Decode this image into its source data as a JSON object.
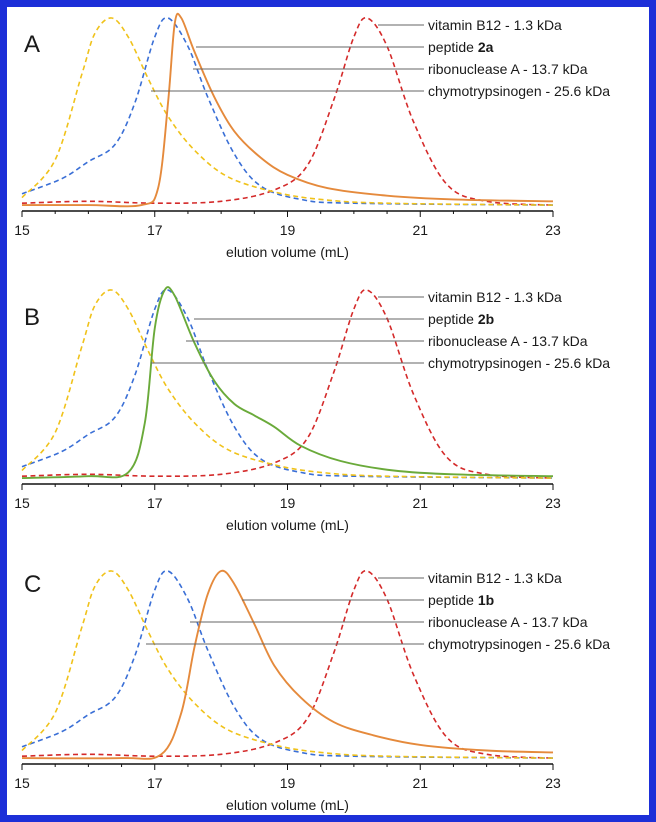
{
  "chart_data": [
    {
      "type": "line",
      "panel": "A",
      "xlabel": "elution volume (mL)",
      "ylabel": "",
      "xlim": [
        15,
        23
      ],
      "xticks": [
        15,
        17,
        19,
        21,
        23
      ],
      "grid": false,
      "series": [
        {
          "name": "vitamin B12  - 1.3 kDa",
          "color": "#d42a2a",
          "dashed": true,
          "x": [
            15,
            16,
            17,
            18,
            18.8,
            19.3,
            19.7,
            20.0,
            20.2,
            20.5,
            20.9,
            21.4,
            22.0,
            23
          ],
          "y": [
            0.02,
            0.03,
            0.02,
            0.03,
            0.09,
            0.22,
            0.57,
            0.9,
            1.0,
            0.85,
            0.45,
            0.12,
            0.03,
            0.01
          ]
        },
        {
          "name": "peptide 2a",
          "color": "#e58a3c",
          "dashed": false,
          "x": [
            15,
            16,
            16.8,
            17.05,
            17.2,
            17.3,
            17.4,
            17.6,
            17.9,
            18.2,
            18.6,
            19.0,
            19.6,
            20.5,
            21.5,
            23
          ],
          "y": [
            0.01,
            0.01,
            0.01,
            0.1,
            0.55,
            0.97,
            1.0,
            0.82,
            0.58,
            0.4,
            0.26,
            0.17,
            0.1,
            0.06,
            0.04,
            0.03
          ]
        },
        {
          "name": "ribonuclease A - 13.7 kDa",
          "color": "#3a6fd6",
          "dashed": true,
          "x": [
            15,
            15.6,
            16.0,
            16.4,
            16.7,
            17.0,
            17.2,
            17.5,
            17.8,
            18.2,
            18.6,
            19.2,
            20.0,
            23
          ],
          "y": [
            0.07,
            0.15,
            0.24,
            0.33,
            0.55,
            0.9,
            1.0,
            0.85,
            0.58,
            0.28,
            0.11,
            0.04,
            0.02,
            0.01
          ]
        },
        {
          "name": "chymotrypsinogen - 25.6 kDa",
          "color": "#f0c21a",
          "dashed": true,
          "x": [
            15,
            15.5,
            15.9,
            16.1,
            16.35,
            16.6,
            16.9,
            17.2,
            17.6,
            18.1,
            18.8,
            19.5,
            20.5,
            23
          ],
          "y": [
            0.05,
            0.25,
            0.7,
            0.92,
            1.0,
            0.9,
            0.68,
            0.48,
            0.3,
            0.16,
            0.08,
            0.04,
            0.02,
            0.01
          ]
        }
      ]
    },
    {
      "type": "line",
      "panel": "B",
      "xlabel": "elution volume (mL)",
      "ylabel": "",
      "xlim": [
        15,
        23
      ],
      "xticks": [
        15,
        17,
        19,
        21,
        23
      ],
      "grid": false,
      "series": [
        {
          "name": "vitamin B12  - 1.3 kDa",
          "color": "#d42a2a",
          "dashed": true,
          "x": [
            15,
            16,
            17,
            18,
            18.8,
            19.3,
            19.7,
            20.0,
            20.2,
            20.5,
            20.9,
            21.4,
            22.0,
            23
          ],
          "y": [
            0.02,
            0.03,
            0.02,
            0.03,
            0.09,
            0.22,
            0.57,
            0.9,
            1.0,
            0.85,
            0.45,
            0.12,
            0.03,
            0.01
          ]
        },
        {
          "name": "peptide 2b",
          "color": "#6aaa3a",
          "dashed": false,
          "x": [
            15,
            16,
            16.6,
            16.85,
            17.0,
            17.15,
            17.3,
            17.6,
            17.9,
            18.2,
            18.5,
            18.8,
            19.2,
            19.8,
            20.6,
            21.5,
            23
          ],
          "y": [
            0.01,
            0.02,
            0.04,
            0.3,
            0.8,
            1.0,
            0.97,
            0.72,
            0.52,
            0.4,
            0.34,
            0.28,
            0.18,
            0.1,
            0.05,
            0.03,
            0.02
          ]
        },
        {
          "name": "ribonuclease A - 13.7 kDa",
          "color": "#3a6fd6",
          "dashed": true,
          "x": [
            15,
            15.6,
            16.0,
            16.4,
            16.7,
            17.0,
            17.2,
            17.5,
            17.8,
            18.2,
            18.6,
            19.2,
            20.0,
            23
          ],
          "y": [
            0.07,
            0.15,
            0.24,
            0.33,
            0.55,
            0.9,
            1.0,
            0.85,
            0.58,
            0.28,
            0.11,
            0.04,
            0.02,
            0.01
          ]
        },
        {
          "name": "chymotrypsinogen - 25.6 kDa",
          "color": "#f0c21a",
          "dashed": true,
          "x": [
            15,
            15.5,
            15.9,
            16.1,
            16.35,
            16.6,
            16.9,
            17.2,
            17.6,
            18.1,
            18.8,
            19.5,
            20.5,
            23
          ],
          "y": [
            0.05,
            0.25,
            0.7,
            0.92,
            1.0,
            0.9,
            0.68,
            0.48,
            0.3,
            0.16,
            0.08,
            0.04,
            0.02,
            0.01
          ]
        }
      ]
    },
    {
      "type": "line",
      "panel": "C",
      "xlabel": "elution volume (mL)",
      "ylabel": "",
      "xlim": [
        15,
        23
      ],
      "xticks": [
        15,
        17,
        19,
        21,
        23
      ],
      "grid": false,
      "series": [
        {
          "name": "vitamin B12  - 1.3 kDa",
          "color": "#d42a2a",
          "dashed": true,
          "x": [
            15,
            16,
            17,
            18,
            18.8,
            19.3,
            19.7,
            20.0,
            20.2,
            20.5,
            20.9,
            21.4,
            22.0,
            23
          ],
          "y": [
            0.02,
            0.03,
            0.02,
            0.03,
            0.09,
            0.22,
            0.57,
            0.9,
            1.0,
            0.85,
            0.45,
            0.12,
            0.03,
            0.01
          ]
        },
        {
          "name": "peptide 1b",
          "color": "#e58a3c",
          "dashed": false,
          "x": [
            15,
            16.5,
            17.1,
            17.4,
            17.6,
            17.8,
            18.0,
            18.2,
            18.5,
            18.8,
            19.2,
            19.7,
            20.3,
            21.0,
            22.0,
            23
          ],
          "y": [
            0.01,
            0.01,
            0.03,
            0.25,
            0.6,
            0.88,
            1.0,
            0.93,
            0.72,
            0.5,
            0.33,
            0.2,
            0.13,
            0.08,
            0.05,
            0.04
          ]
        },
        {
          "name": "ribonuclease A - 13.7 kDa",
          "color": "#3a6fd6",
          "dashed": true,
          "x": [
            15,
            15.6,
            16.0,
            16.4,
            16.7,
            17.0,
            17.2,
            17.5,
            17.8,
            18.2,
            18.6,
            19.2,
            20.0,
            23
          ],
          "y": [
            0.07,
            0.15,
            0.24,
            0.33,
            0.55,
            0.9,
            1.0,
            0.85,
            0.58,
            0.28,
            0.11,
            0.04,
            0.02,
            0.01
          ]
        },
        {
          "name": "chymotrypsinogen - 25.6 kDa",
          "color": "#f0c21a",
          "dashed": true,
          "x": [
            15,
            15.5,
            15.9,
            16.1,
            16.35,
            16.6,
            16.9,
            17.2,
            17.6,
            18.1,
            18.8,
            19.5,
            20.5,
            23
          ],
          "y": [
            0.05,
            0.25,
            0.7,
            0.92,
            1.0,
            0.9,
            0.68,
            0.48,
            0.3,
            0.16,
            0.08,
            0.04,
            0.02,
            0.01
          ]
        }
      ]
    }
  ],
  "panels": [
    {
      "letter": "A",
      "xlabel": "elution volume (mL)",
      "labels": [
        {
          "pre": "vitamin B12  - 1.3 kDa",
          "bold": ""
        },
        {
          "pre": "peptide ",
          "bold": "2a"
        },
        {
          "pre": "ribonuclease A - 13.7 kDa",
          "bold": ""
        },
        {
          "pre": "chymotrypsinogen - 25.6 kDa",
          "bold": ""
        }
      ]
    },
    {
      "letter": "B",
      "xlabel": "elution volume (mL)",
      "labels": [
        {
          "pre": "vitamin B12  - 1.3 kDa",
          "bold": ""
        },
        {
          "pre": "peptide ",
          "bold": "2b"
        },
        {
          "pre": "ribonuclease A - 13.7 kDa",
          "bold": ""
        },
        {
          "pre": "chymotrypsinogen - 25.6 kDa",
          "bold": ""
        }
      ]
    },
    {
      "letter": "C",
      "xlabel": "elution volume (mL)",
      "labels": [
        {
          "pre": "vitamin B12  - 1.3 kDa",
          "bold": ""
        },
        {
          "pre": "peptide ",
          "bold": "1b"
        },
        {
          "pre": "ribonuclease A - 13.7 kDa",
          "bold": ""
        },
        {
          "pre": "chymotrypsinogen - 25.6 kDa",
          "bold": ""
        }
      ]
    }
  ],
  "frame_color": "#1d2fd8"
}
